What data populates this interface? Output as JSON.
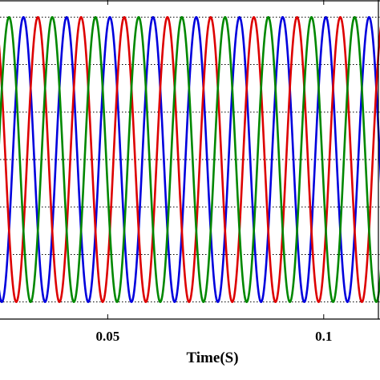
{
  "chart_data": {
    "type": "line",
    "title": "",
    "xlabel": "Time(S)",
    "ylabel": "",
    "xlim": [
      0.0247,
      0.1134
    ],
    "ylim": [
      -1.12,
      1.12
    ],
    "x_ticks": [
      0.05,
      0.1
    ],
    "x_tick_labels": [
      "0.05",
      "0.1"
    ],
    "y_gridlines": [
      -1,
      -0.667,
      -0.333,
      0,
      0.333,
      0.667,
      1
    ],
    "grid": "horizontal dotted",
    "frequency_hz": 100,
    "amplitude": 1,
    "series": [
      {
        "color": "#0000dd",
        "phase_deg": 72
      },
      {
        "color": "#dd0000",
        "phase_deg": -48
      },
      {
        "color": "#008800",
        "phase_deg": 192
      }
    ]
  }
}
